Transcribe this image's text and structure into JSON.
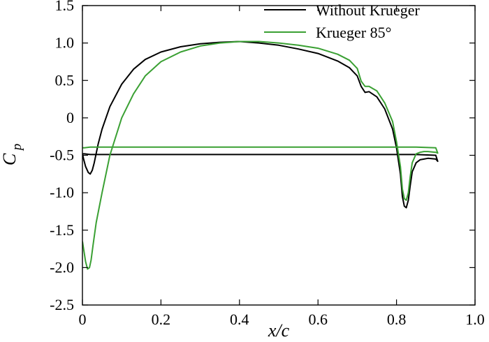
{
  "chart_data": {
    "type": "line",
    "xlabel": "x/c",
    "ylabel": "C",
    "ylabel_subscript": "p",
    "xlim": [
      0,
      1.0
    ],
    "ylim": [
      -2.5,
      1.5
    ],
    "xticks": [
      0,
      0.2,
      0.4,
      0.6,
      0.8,
      1.0
    ],
    "xtick_labels": [
      "0",
      "0.2",
      "0.4",
      "0.6",
      "0.8",
      "1.0"
    ],
    "yticks": [
      1.5,
      1.0,
      0.5,
      0,
      -0.5,
      -1.0,
      -1.5,
      -2.0,
      -2.5
    ],
    "ytick_labels": [
      "1.5",
      "1.0",
      "0.5",
      "0",
      "-0.5",
      "-1.0",
      "-1.5",
      "-2.0",
      "-2.5"
    ],
    "grid": false,
    "legend_position": "top-right",
    "series": [
      {
        "name": "Without Krueger",
        "color": "#000000",
        "x": [
          0.0,
          0.003,
          0.008,
          0.015,
          0.02,
          0.025,
          0.03,
          0.04,
          0.05,
          0.07,
          0.1,
          0.13,
          0.16,
          0.2,
          0.25,
          0.3,
          0.35,
          0.4,
          0.45,
          0.5,
          0.55,
          0.6,
          0.65,
          0.68,
          0.7,
          0.71,
          0.72,
          0.73,
          0.75,
          0.77,
          0.79,
          0.8,
          0.81,
          0.815,
          0.82,
          0.825,
          0.83,
          0.835,
          0.84,
          0.85,
          0.86,
          0.87,
          0.88,
          0.9,
          0.905,
          0.9,
          0.85,
          0.8,
          0.7,
          0.6,
          0.5,
          0.4,
          0.3,
          0.2,
          0.1,
          0.05,
          0.02,
          0.005,
          0.0
        ],
        "y": [
          -0.48,
          -0.55,
          -0.65,
          -0.73,
          -0.75,
          -0.7,
          -0.6,
          -0.35,
          -0.15,
          0.15,
          0.45,
          0.65,
          0.78,
          0.88,
          0.95,
          0.99,
          1.01,
          1.02,
          1.0,
          0.97,
          0.92,
          0.86,
          0.76,
          0.67,
          0.56,
          0.42,
          0.34,
          0.35,
          0.28,
          0.12,
          -0.15,
          -0.4,
          -0.75,
          -1.05,
          -1.18,
          -1.2,
          -1.1,
          -0.9,
          -0.72,
          -0.6,
          -0.56,
          -0.55,
          -0.54,
          -0.55,
          -0.58,
          -0.5,
          -0.49,
          -0.49,
          -0.49,
          -0.49,
          -0.49,
          -0.49,
          -0.49,
          -0.49,
          -0.49,
          -0.49,
          -0.49,
          -0.48,
          -0.48
        ]
      },
      {
        "name": "Krueger 85°",
        "color": "#3aa033",
        "x": [
          0.0,
          0.003,
          0.008,
          0.013,
          0.018,
          0.022,
          0.027,
          0.035,
          0.05,
          0.07,
          0.1,
          0.13,
          0.16,
          0.2,
          0.25,
          0.3,
          0.35,
          0.4,
          0.45,
          0.5,
          0.55,
          0.6,
          0.65,
          0.68,
          0.7,
          0.71,
          0.72,
          0.73,
          0.75,
          0.77,
          0.79,
          0.8,
          0.81,
          0.815,
          0.82,
          0.825,
          0.83,
          0.835,
          0.84,
          0.85,
          0.86,
          0.87,
          0.88,
          0.9,
          0.905,
          0.9,
          0.85,
          0.8,
          0.7,
          0.6,
          0.5,
          0.4,
          0.3,
          0.2,
          0.1,
          0.05,
          0.02,
          0.005,
          0.0
        ],
        "y": [
          -1.65,
          -1.75,
          -1.92,
          -2.02,
          -2.0,
          -1.9,
          -1.7,
          -1.4,
          -1.0,
          -0.5,
          0.0,
          0.32,
          0.56,
          0.75,
          0.88,
          0.96,
          1.0,
          1.02,
          1.02,
          1.0,
          0.97,
          0.93,
          0.85,
          0.77,
          0.66,
          0.49,
          0.42,
          0.42,
          0.36,
          0.2,
          -0.05,
          -0.32,
          -0.65,
          -0.95,
          -1.08,
          -1.1,
          -1.0,
          -0.78,
          -0.6,
          -0.48,
          -0.46,
          -0.45,
          -0.45,
          -0.46,
          -0.47,
          -0.4,
          -0.39,
          -0.39,
          -0.39,
          -0.39,
          -0.39,
          -0.39,
          -0.39,
          -0.39,
          -0.39,
          -0.39,
          -0.39,
          -0.4,
          -0.4
        ]
      }
    ]
  }
}
